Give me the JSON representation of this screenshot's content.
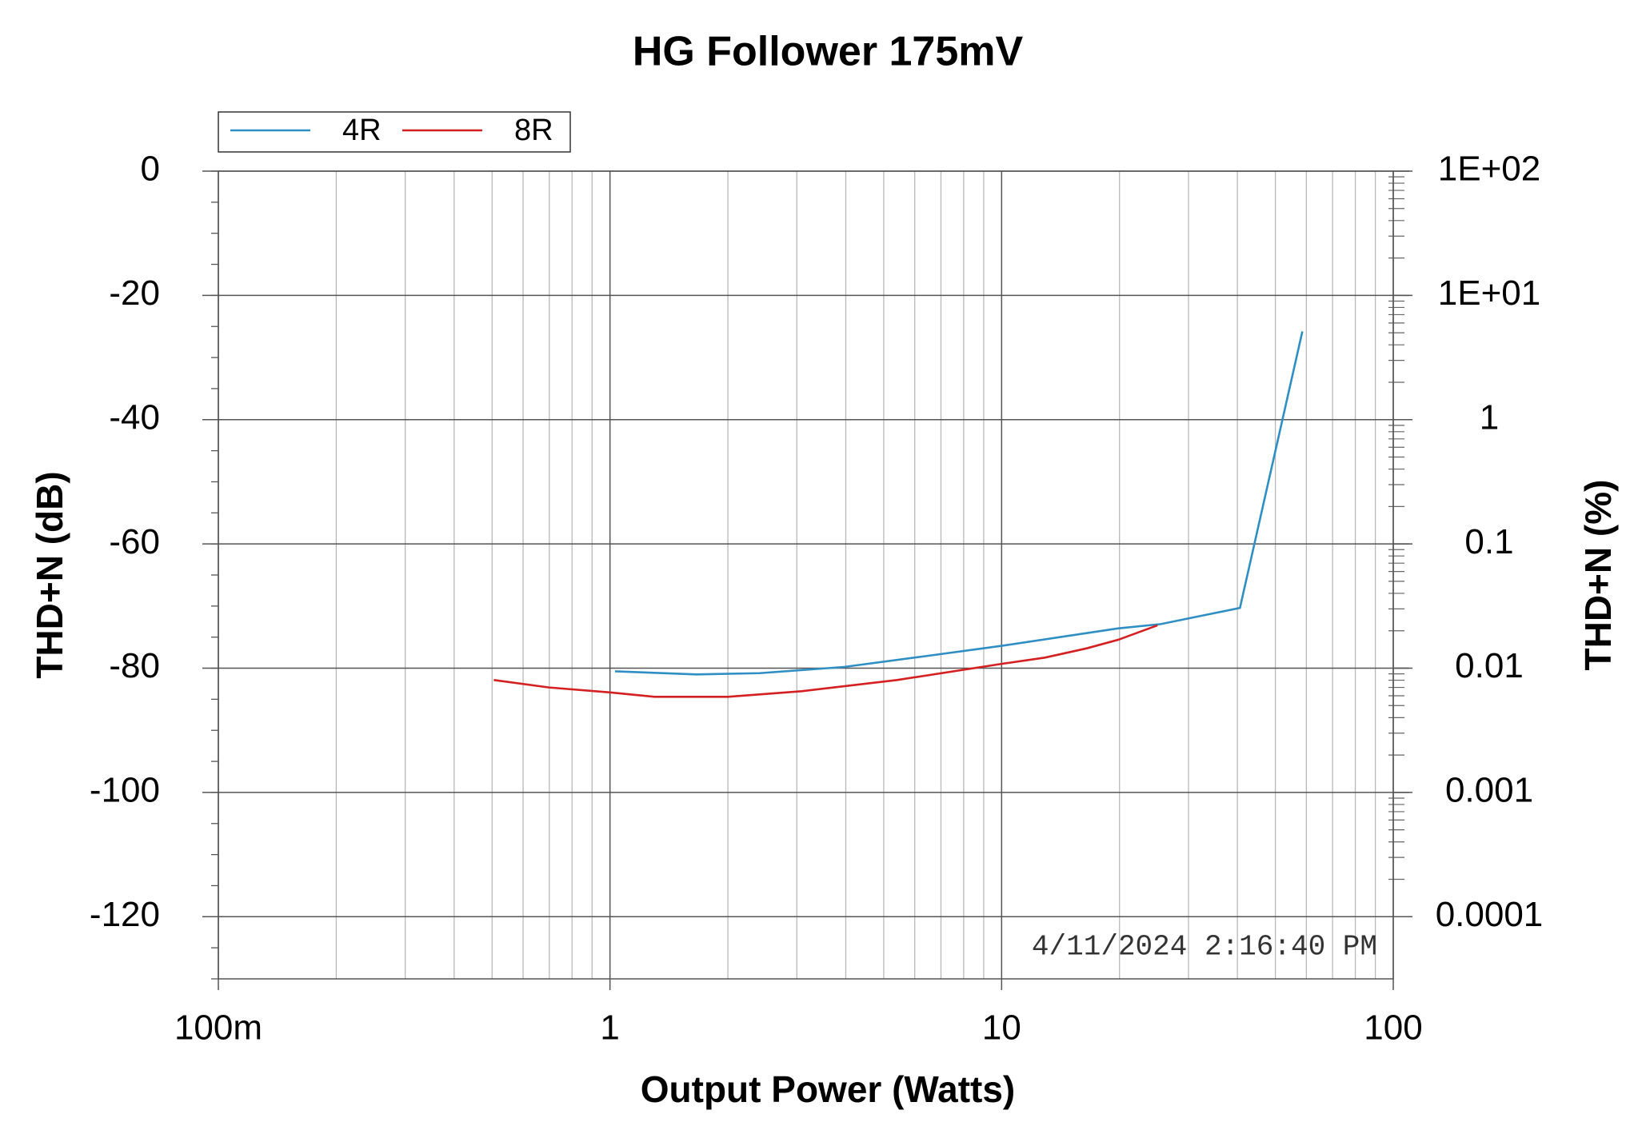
{
  "chart_data": {
    "type": "line",
    "title": "HG Follower 175mV",
    "xlabel": "Output Power (Watts)",
    "ylabel": "THD+N (dB)",
    "y2label": "THD+N (%)",
    "annotation": "4/11/2024 2:16:40 PM",
    "xscale": "log",
    "y2scale": "log",
    "grid": true,
    "legend": "upper left",
    "xlim": [
      0.1,
      100
    ],
    "xticks": [
      {
        "value": 0.1,
        "label": "100m"
      },
      1,
      10,
      100
    ],
    "ylim": [
      -130,
      0
    ],
    "yticks": [
      0,
      -20,
      -40,
      -60,
      -80,
      -100,
      -120
    ],
    "y2lim": [
      3.16e-05,
      100
    ],
    "y2ticks": [
      {
        "value": 100,
        "label": "1E+02"
      },
      {
        "value": 10,
        "label": "1E+01"
      },
      1,
      0.1,
      0.01,
      0.001,
      0.0001
    ],
    "series": [
      {
        "name": "4R",
        "color": "#2f8fc4",
        "x": [
          1.03,
          1.66,
          2.41,
          3.96,
          6.5,
          10.0,
          19.8,
          25.5,
          40.6,
          58.6
        ],
        "values": [
          -80.5,
          -81.0,
          -80.8,
          -79.8,
          -78.0,
          -76.4,
          -73.6,
          -72.9,
          -70.3,
          -25.8
        ]
      },
      {
        "name": "8R",
        "color": "#d42020",
        "x": [
          0.505,
          0.698,
          1.0,
          1.3,
          2.0,
          3.09,
          5.41,
          10.0,
          12.9,
          16.5,
          19.9,
          25.0
        ],
        "values": [
          -81.9,
          -83.1,
          -83.9,
          -84.6,
          -84.6,
          -83.7,
          -81.9,
          -79.3,
          -78.3,
          -76.8,
          -75.4,
          -73.1
        ]
      }
    ]
  }
}
